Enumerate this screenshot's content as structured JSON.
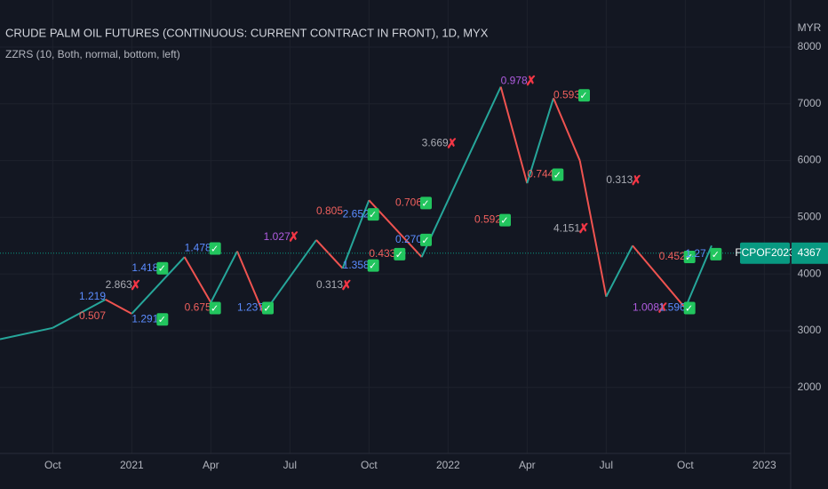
{
  "chart_data": {
    "type": "line",
    "title": "CRUDE PALM OIL FUTURES (CONTINUOUS: CURRENT CONTRACT IN FRONT), 1D, MYX",
    "subtitle": "ZZRS (10, Both, normal, bottom, left)",
    "y_axis_label": "MYR",
    "x": [
      "2020-08",
      "2020-10",
      "2020-12",
      "2021-01",
      "2021-03",
      "2021-04",
      "2021-05",
      "2021-06",
      "2021-08",
      "2021-09",
      "2021-10",
      "2021-11",
      "2021-12",
      "2022-03",
      "2022-04",
      "2022-05",
      "2022-06",
      "2022-07",
      "2022-08",
      "2022-10",
      "2022-11"
    ],
    "series": [
      {
        "name": "ZZRS",
        "up_color": "#26a69a",
        "down_color": "#ef5350",
        "values": [
          2850,
          3050,
          3550,
          3300,
          4300,
          3500,
          4400,
          3300,
          4600,
          4100,
          5300,
          4800,
          4300,
          7300,
          5600,
          7100,
          6000,
          3600,
          4500,
          3400,
          4500
        ]
      }
    ],
    "xlim": [
      "2020-08",
      "2023-02"
    ],
    "xticks": [
      {
        "value": "2020-10",
        "label": "Oct"
      },
      {
        "value": "2021-01",
        "label": "2021"
      },
      {
        "value": "2021-04",
        "label": "Apr"
      },
      {
        "value": "2021-07",
        "label": "Jul"
      },
      {
        "value": "2021-10",
        "label": "Oct"
      },
      {
        "value": "2022-01",
        "label": "2022"
      },
      {
        "value": "2022-04",
        "label": "Apr"
      },
      {
        "value": "2022-07",
        "label": "Jul"
      },
      {
        "value": "2022-10",
        "label": "Oct"
      },
      {
        "value": "2023-01",
        "label": "2023"
      }
    ],
    "ylim": [
      837,
      8830
    ],
    "yticks": [
      2000,
      3000,
      4000,
      5000,
      6000,
      7000,
      8000
    ],
    "grid": true,
    "last_price": {
      "symbol": "FCPOF2023",
      "value": 4367,
      "color": "#089981"
    },
    "annotations": [
      {
        "text": "1.219",
        "x": "2020-11",
        "y": 3600,
        "color": "#5b8cff",
        "status": ""
      },
      {
        "text": "2.863",
        "x": "2020-12",
        "y": 3800,
        "color": "#a9abb3",
        "status": "✗"
      },
      {
        "text": "0.507",
        "x": "2020-11",
        "y": 3250,
        "color": "#f0605d",
        "status": ""
      },
      {
        "text": "1.291",
        "x": "2021-01",
        "y": 3200,
        "color": "#5b8cff",
        "status": "✓"
      },
      {
        "text": "1.418",
        "x": "2021-01",
        "y": 4100,
        "color": "#5b8cff",
        "status": "✓"
      },
      {
        "text": "0.675",
        "x": "2021-03",
        "y": 3400,
        "color": "#f0605d",
        "status": "✓"
      },
      {
        "text": "1.478",
        "x": "2021-03",
        "y": 4450,
        "color": "#5b8cff",
        "status": "✓"
      },
      {
        "text": "1.237",
        "x": "2021-05",
        "y": 3400,
        "color": "#5b8cff",
        "status": "✓"
      },
      {
        "text": "1.027",
        "x": "2021-06",
        "y": 4650,
        "color": "#b05ce0",
        "status": "✗"
      },
      {
        "text": "0.313",
        "x": "2021-08",
        "y": 3800,
        "color": "#a9abb3",
        "status": "✗"
      },
      {
        "text": "0.805",
        "x": "2021-08",
        "y": 5100,
        "color": "#f0605d",
        "status": ""
      },
      {
        "text": "1.358",
        "x": "2021-09",
        "y": 4150,
        "color": "#5b8cff",
        "status": "✓"
      },
      {
        "text": "2.652",
        "x": "2021-09",
        "y": 5050,
        "color": "#5b8cff",
        "status": "✓"
      },
      {
        "text": "0.433",
        "x": "2021-10",
        "y": 4350,
        "color": "#f0605d",
        "status": "✓"
      },
      {
        "text": "0.706",
        "x": "2021-11",
        "y": 5250,
        "color": "#f0605d",
        "status": "✓"
      },
      {
        "text": "0.270",
        "x": "2021-11",
        "y": 4600,
        "color": "#5b8cff",
        "status": "✓"
      },
      {
        "text": "3.669",
        "x": "2021-12",
        "y": 6300,
        "color": "#a9abb3",
        "status": "✗"
      },
      {
        "text": "0.592",
        "x": "2022-02",
        "y": 4950,
        "color": "#f0605d",
        "status": "✓"
      },
      {
        "text": "0.978",
        "x": "2022-03",
        "y": 7400,
        "color": "#b05ce0",
        "status": "✗"
      },
      {
        "text": "0.744",
        "x": "2022-04",
        "y": 5750,
        "color": "#f0605d",
        "status": "✓"
      },
      {
        "text": "0.593",
        "x": "2022-05",
        "y": 7150,
        "color": "#f0605d",
        "status": "✓"
      },
      {
        "text": "4.151",
        "x": "2022-05",
        "y": 4800,
        "color": "#a9abb3",
        "status": "✗"
      },
      {
        "text": "0.313",
        "x": "2022-07",
        "y": 5650,
        "color": "#a9abb3",
        "status": "✗"
      },
      {
        "text": "1.008",
        "x": "2022-08",
        "y": 3400,
        "color": "#b05ce0",
        "status": "✗"
      },
      {
        "text": "0.452",
        "x": "2022-09",
        "y": 4300,
        "color": "#f0605d",
        "status": "✓"
      },
      {
        "text": "1.596",
        "x": "2022-09",
        "y": 3400,
        "color": "#5b8cff",
        "status": "✓"
      },
      {
        "text": "1.27",
        "x": "2022-10",
        "y": 4350,
        "color": "#5b8cff",
        "status": "✓"
      }
    ]
  }
}
